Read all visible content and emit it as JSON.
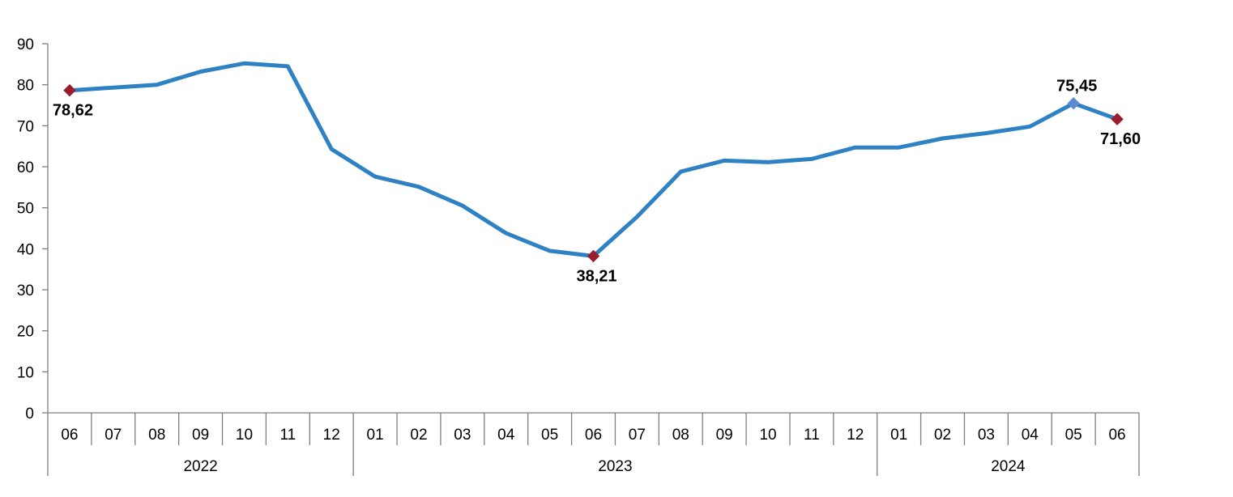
{
  "chart_data": {
    "type": "line",
    "categories": [
      "06",
      "07",
      "08",
      "09",
      "10",
      "11",
      "12",
      "01",
      "02",
      "03",
      "04",
      "05",
      "06",
      "07",
      "08",
      "09",
      "10",
      "11",
      "12",
      "01",
      "02",
      "03",
      "04",
      "05",
      "06"
    ],
    "years": [
      {
        "label": "2022",
        "start": 0,
        "count": 7
      },
      {
        "label": "2023",
        "start": 7,
        "count": 12
      },
      {
        "label": "2024",
        "start": 19,
        "count": 6
      }
    ],
    "series": [
      {
        "color": "#2e82c4",
        "values": [
          78.62,
          79.3,
          80.0,
          83.2,
          85.2,
          84.5,
          64.3,
          57.6,
          55.1,
          50.5,
          43.8,
          39.5,
          38.21,
          47.8,
          58.8,
          61.5,
          61.1,
          61.9,
          64.7,
          64.7,
          66.9,
          68.2,
          69.8,
          75.45,
          71.6
        ]
      }
    ],
    "ylim": [
      0,
      90
    ],
    "yticks": [
      "0",
      "10",
      "20",
      "30",
      "40",
      "50",
      "60",
      "70",
      "80",
      "90"
    ],
    "grid": false,
    "marker_color": "#9b1c2c",
    "highlight_marker_color": "#5b8bd0",
    "data_labels": [
      {
        "index": 0,
        "text": "78,62",
        "position": "below"
      },
      {
        "index": 12,
        "text": "38,21",
        "position": "below"
      },
      {
        "index": 23,
        "text": "75,45",
        "position": "above"
      },
      {
        "index": 24,
        "text": "71,60",
        "position": "below"
      }
    ]
  }
}
